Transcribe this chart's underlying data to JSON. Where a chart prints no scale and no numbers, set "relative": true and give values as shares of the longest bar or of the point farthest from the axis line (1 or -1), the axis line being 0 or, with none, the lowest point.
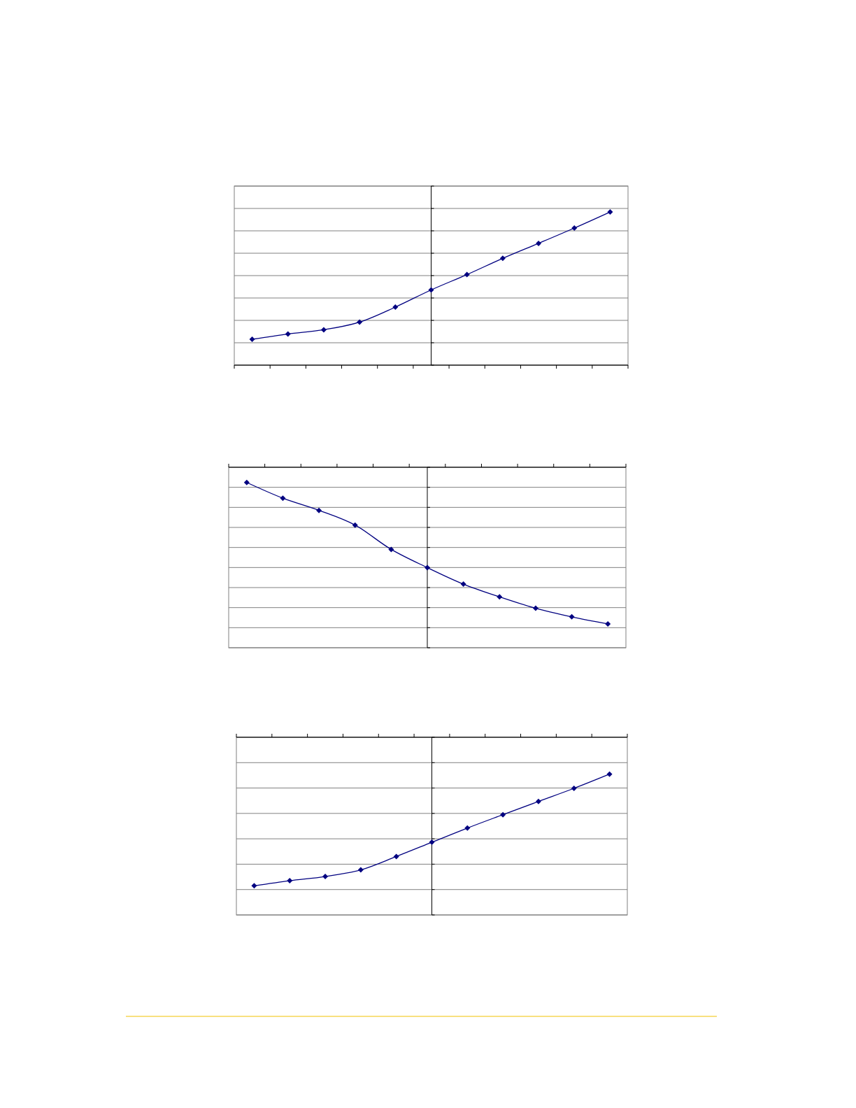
{
  "chart_data": [
    {
      "type": "line",
      "relative": true,
      "categories": [
        null,
        null,
        null,
        null,
        null,
        null,
        null,
        null,
        null,
        null,
        null
      ],
      "grid": "y",
      "marker": "diamond",
      "line_style": "solid",
      "series": [
        {
          "color": "#000080",
          "values": [
            0.169,
            0.203,
            0.231,
            0.281,
            0.379,
            0.491,
            0.591,
            0.697,
            0.795,
            0.895,
            1
          ]
        }
      ]
    },
    {
      "type": "line",
      "relative": true,
      "categories": [
        null,
        null,
        null,
        null,
        null,
        null,
        null,
        null,
        null,
        null,
        null
      ],
      "grid": "y",
      "marker": "diamond",
      "line_style": "solid",
      "series": [
        {
          "color": "#000080",
          "values": [
            1,
            0.905,
            0.831,
            0.742,
            0.595,
            0.485,
            0.385,
            0.308,
            0.239,
            0.187,
            0.144
          ]
        }
      ]
    },
    {
      "type": "line",
      "relative": true,
      "categories": [
        null,
        null,
        null,
        null,
        null,
        null,
        null,
        null,
        null,
        null,
        null
      ],
      "grid": "y",
      "marker": "diamond",
      "line_style": "solid",
      "series": [
        {
          "color": "#000080",
          "values": [
            0.207,
            0.243,
            0.273,
            0.32,
            0.415,
            0.516,
            0.617,
            0.712,
            0.806,
            0.899,
            1
          ]
        }
      ]
    }
  ]
}
